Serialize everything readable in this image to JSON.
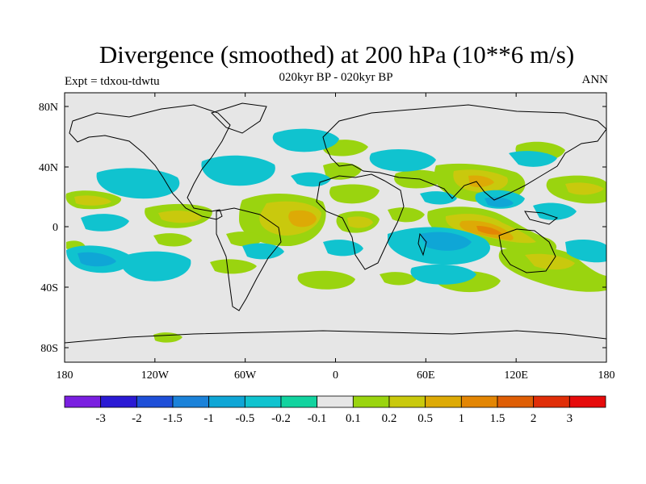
{
  "title": "Divergence (smoothed) at 200 hPa (10**6 m/s)",
  "subtitle": "020kyr BP - 020kyr BP",
  "experiment": "Expt = tdxou-tdwtu",
  "season": "ANN",
  "map": {
    "projection": "cylindrical equidistant",
    "x_ticks": [
      "180",
      "120W",
      "60W",
      "0",
      "60E",
      "120E",
      "180"
    ],
    "y_ticks": [
      "80N",
      "40N",
      "0",
      "40S",
      "80S"
    ],
    "background_color": "#e6e6e6",
    "coastlines": true
  },
  "colorbar": {
    "labels": [
      "-3",
      "-2",
      "-1.5",
      "-1",
      "-0.5",
      "-0.2",
      "-0.1",
      "0.1",
      "0.2",
      "0.5",
      "1",
      "1.5",
      "2",
      "3"
    ],
    "colors": [
      "#7a1fe0",
      "#2b1ad4",
      "#1e4fd8",
      "#1b82d9",
      "#0fa6d6",
      "#10c3cf",
      "#12d39f",
      "#e6e6e6",
      "#9ad40f",
      "#c9c90d",
      "#ddaa06",
      "#e38604",
      "#df5e05",
      "#e02e08",
      "#e60b0b"
    ]
  }
}
